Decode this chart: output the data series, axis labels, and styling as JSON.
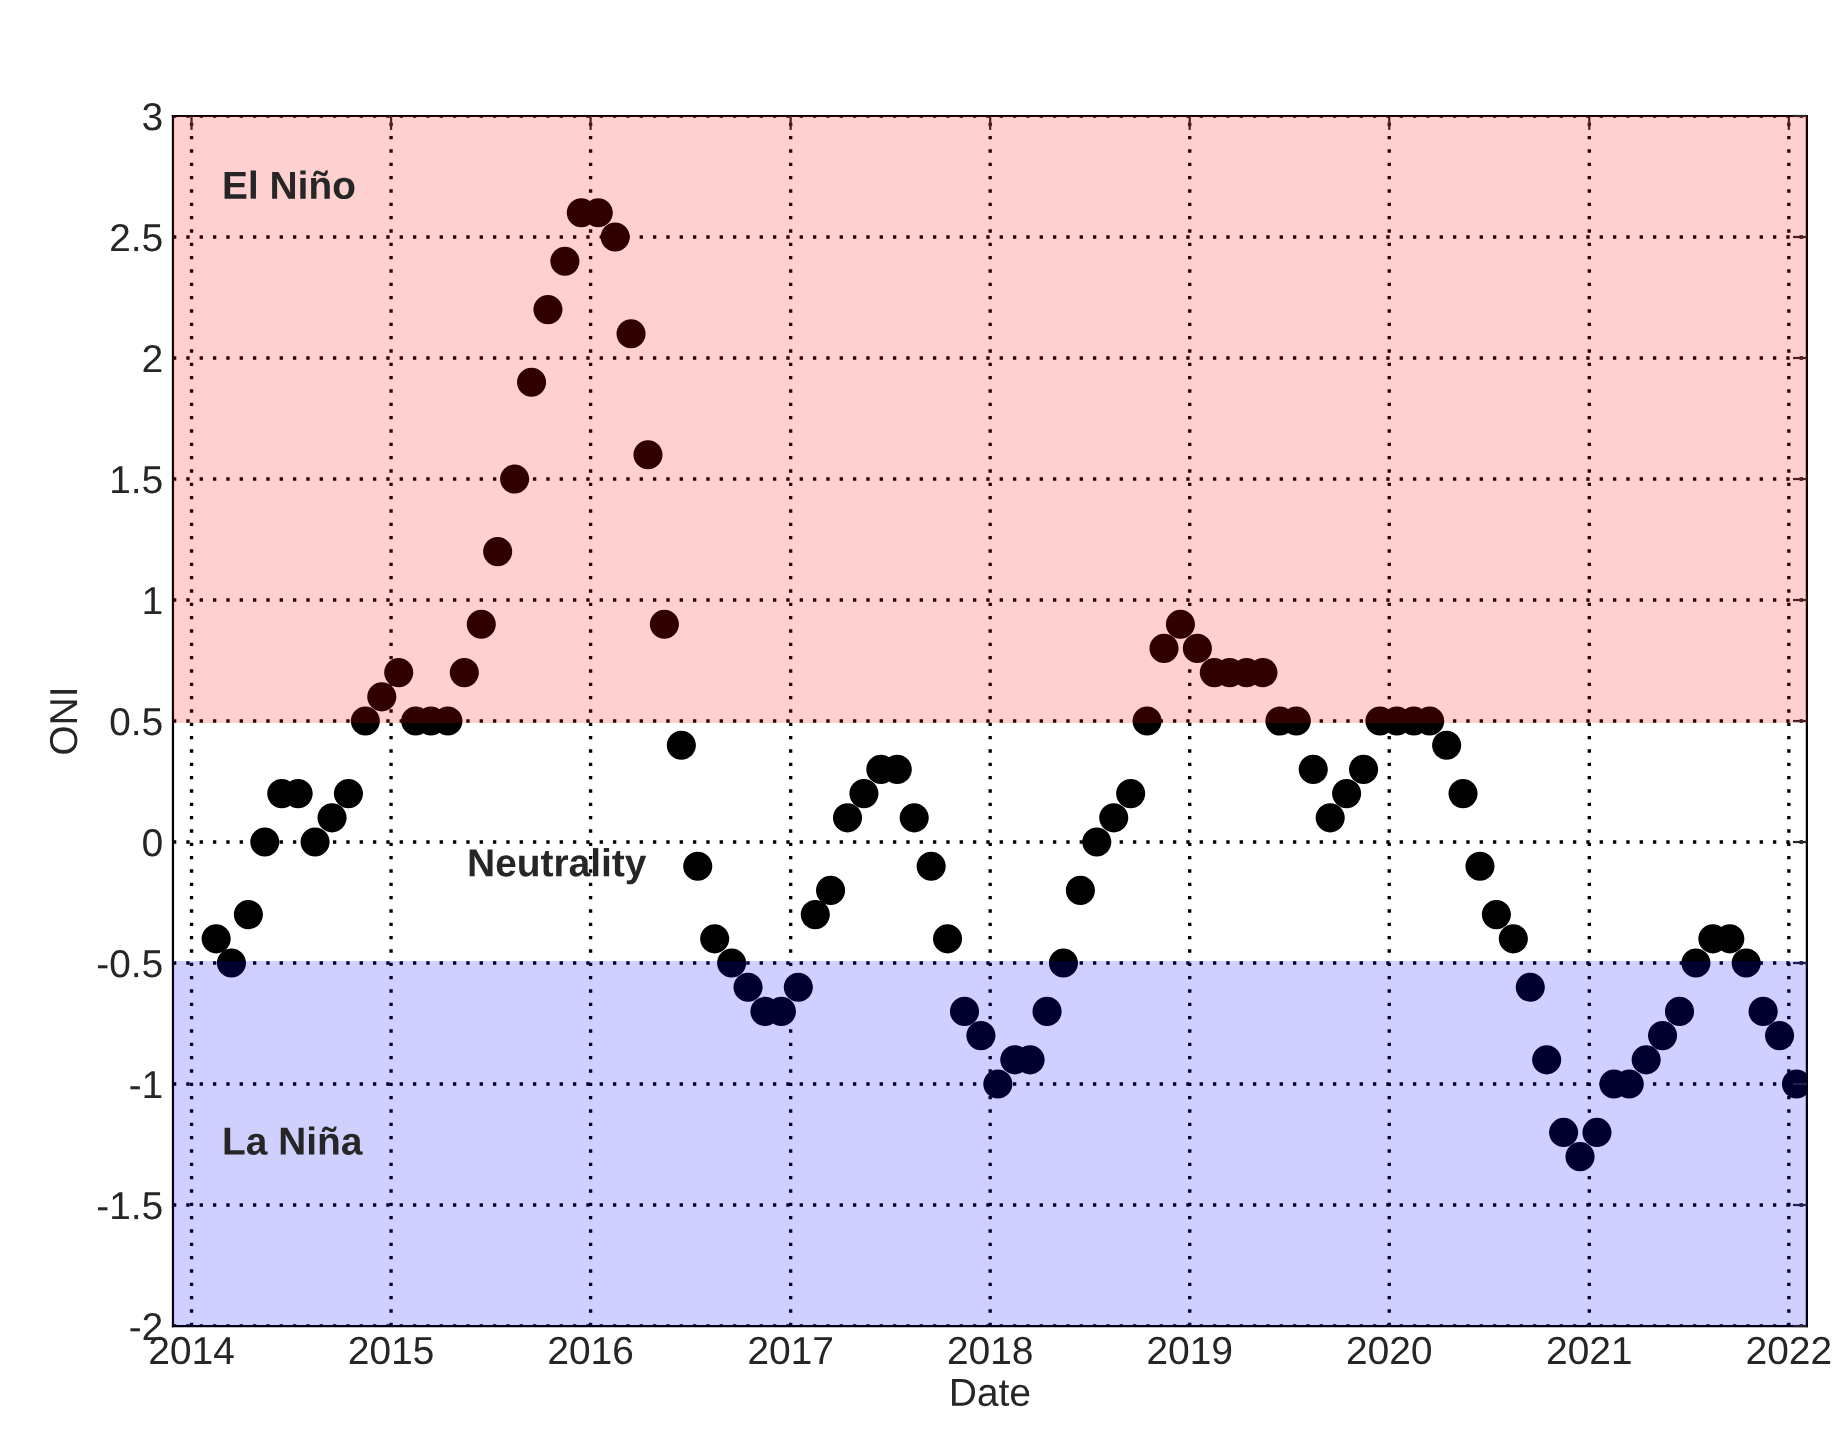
{
  "chart_data": {
    "type": "scatter",
    "xlabel": "Date",
    "ylabel": "ONI",
    "x": [
      "2014-02-15",
      "2014-03-15",
      "2014-04-15",
      "2014-05-15",
      "2014-06-15",
      "2014-07-15",
      "2014-08-15",
      "2014-09-15",
      "2014-10-15",
      "2014-11-15",
      "2014-12-15",
      "2015-01-15",
      "2015-02-15",
      "2015-03-15",
      "2015-04-15",
      "2015-05-15",
      "2015-06-15",
      "2015-07-15",
      "2015-08-15",
      "2015-09-15",
      "2015-10-15",
      "2015-11-15",
      "2015-12-15",
      "2016-01-15",
      "2016-02-15",
      "2016-03-15",
      "2016-04-15",
      "2016-05-15",
      "2016-06-15",
      "2016-07-15",
      "2016-08-15",
      "2016-09-15",
      "2016-10-15",
      "2016-11-15",
      "2016-12-15",
      "2017-01-15",
      "2017-02-15",
      "2017-03-15",
      "2017-04-15",
      "2017-05-15",
      "2017-06-15",
      "2017-07-15",
      "2017-08-15",
      "2017-09-15",
      "2017-10-15",
      "2017-11-15",
      "2017-12-15",
      "2018-01-15",
      "2018-02-15",
      "2018-03-15",
      "2018-04-15",
      "2018-05-15",
      "2018-06-15",
      "2018-07-15",
      "2018-08-15",
      "2018-09-15",
      "2018-10-15",
      "2018-11-15",
      "2018-12-15",
      "2019-01-15",
      "2019-02-15",
      "2019-03-15",
      "2019-04-15",
      "2019-05-15",
      "2019-06-15",
      "2019-07-15",
      "2019-08-15",
      "2019-09-15",
      "2019-10-15",
      "2019-11-15",
      "2019-12-15",
      "2020-01-15",
      "2020-02-15",
      "2020-03-15",
      "2020-04-15",
      "2020-05-15",
      "2020-06-15",
      "2020-07-15",
      "2020-08-15",
      "2020-09-15",
      "2020-10-15",
      "2020-11-15",
      "2020-12-15",
      "2021-01-15",
      "2021-02-15",
      "2021-03-15",
      "2021-04-15",
      "2021-05-15",
      "2021-06-15",
      "2021-07-15",
      "2021-08-15",
      "2021-09-15",
      "2021-10-15",
      "2021-11-15",
      "2021-12-15",
      "2022-01-15"
    ],
    "series": [
      {
        "color": "#000000",
        "values": [
          -0.4,
          -0.5,
          -0.3,
          0,
          0.2,
          0.2,
          0,
          0.1,
          0.2,
          0.5,
          0.6,
          0.7,
          0.5,
          0.5,
          0.5,
          0.7,
          0.9,
          1.2,
          1.5,
          1.9,
          2.2,
          2.4,
          2.6,
          2.6,
          2.5,
          2.1,
          1.6,
          0.9,
          0.4,
          -0.1,
          -0.4,
          -0.5,
          -0.6,
          -0.7,
          -0.7,
          -0.6,
          -0.3,
          -0.2,
          0.1,
          0.2,
          0.3,
          0.3,
          0.1,
          -0.1,
          -0.4,
          -0.7,
          -0.8,
          -1.0,
          -0.9,
          -0.9,
          -0.7,
          -0.5,
          -0.2,
          0,
          0.1,
          0.2,
          0.5,
          0.8,
          0.9,
          0.8,
          0.7,
          0.7,
          0.7,
          0.7,
          0.5,
          0.5,
          0.3,
          0.1,
          0.2,
          0.3,
          0.5,
          0.5,
          0.5,
          0.5,
          0.4,
          0.2,
          -0.1,
          -0.3,
          -0.4,
          -0.6,
          -0.9,
          -1.2,
          -1.3,
          -1.2,
          -1.0,
          -1.0,
          -0.9,
          -0.8,
          -0.7,
          -0.5,
          -0.4,
          -0.4,
          -0.5,
          -0.7,
          -0.8,
          -1.0
        ]
      }
    ],
    "marker": "circle",
    "xlim": [
      "2013-11-28",
      "2022-02-03"
    ],
    "xticks": [
      "2014",
      "2015",
      "2016",
      "2017",
      "2018",
      "2019",
      "2020",
      "2021",
      "2022"
    ],
    "ylim": [
      -2,
      3
    ],
    "yticks": [
      -2,
      -1.5,
      -1,
      -0.5,
      0,
      0.5,
      1,
      1.5,
      2,
      2.5,
      3
    ],
    "grid": true,
    "bands": [
      {
        "axis": "y",
        "from": 0.5,
        "to": 3,
        "label": "El Niño",
        "color": "#ff0000"
      },
      {
        "axis": "y",
        "from": -2,
        "to": -0.5,
        "label": "La Niña",
        "color": "#0000ff"
      }
    ],
    "annotations": [
      "Neutrality"
    ]
  }
}
